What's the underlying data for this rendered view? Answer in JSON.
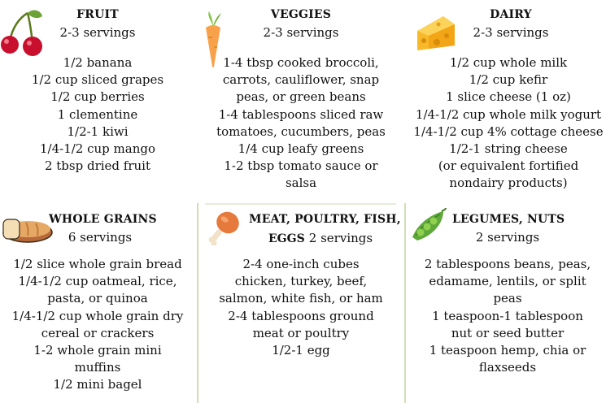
{
  "sections": [
    {
      "key": "fruit",
      "title": "FRUIT",
      "servings": "2-3 servings",
      "lines": [
        "1/2 banana",
        "1/2 cup sliced grapes",
        "1/2 cup berries",
        "1 clementine",
        "1/2-1 kiwi",
        "1/4-1/2 cup mango",
        "2 tbsp dried fruit"
      ],
      "icon": "cherries-icon"
    },
    {
      "key": "veggies",
      "title": "VEGGIES",
      "servings": "2-3 servings",
      "lines": [
        "1-4 tbsp cooked broccoli,",
        "carrots, cauliflower, snap",
        "peas, or green beans",
        "1-4 tablespoons sliced raw",
        "tomatoes, cucumbers, peas",
        "1/4 cup leafy greens",
        "1-2 tbsp tomato sauce or",
        "salsa"
      ],
      "icon": "carrot-icon"
    },
    {
      "key": "dairy",
      "title": "DAIRY",
      "servings": "2-3 servings",
      "lines": [
        "1/2 cup whole milk",
        "1/2 cup kefir",
        "1 slice cheese (1 oz)",
        "1/4-1/2 cup whole milk yogurt",
        "1/4-1/2 cup 4% cottage cheese",
        "1/2-1 string cheese",
        "(or equivalent fortified",
        "nondairy products)"
      ],
      "icon": "cheese-icon"
    },
    {
      "key": "grains",
      "title": "WHOLE GRAINS",
      "servings": "6 servings",
      "lines": [
        "1/2 slice whole grain bread",
        "1/4-1/2 cup oatmeal, rice,",
        "pasta, or quinoa",
        "1/4-1/2 cup whole grain dry",
        "cereal or crackers",
        "1-2 whole grain mini",
        "muffins",
        "1/2 mini bagel"
      ],
      "icon": "bread-icon"
    },
    {
      "key": "meat",
      "title_line1": "MEAT, POULTRY, FISH,",
      "title_line2": "EGGS",
      "servings": "2 servings",
      "lines": [
        "2-4 one-inch cubes",
        "chicken, turkey, beef,",
        "salmon, white fish, or ham",
        "2-4 tablespoons ground",
        "meat or poultry",
        "1/2-1 egg"
      ],
      "icon": "drumstick-icon"
    },
    {
      "key": "legumes",
      "title": "LEGUMES, NUTS",
      "servings": "2 servings",
      "lines": [
        "2 tablespoons beans, peas,",
        "edamame, lentils, or split",
        "peas",
        "1 teaspoon-1 tablespoon",
        "nut or seed butter",
        "1 teaspoon hemp, chia or",
        "flaxseeds"
      ],
      "icon": "peapod-icon"
    }
  ]
}
